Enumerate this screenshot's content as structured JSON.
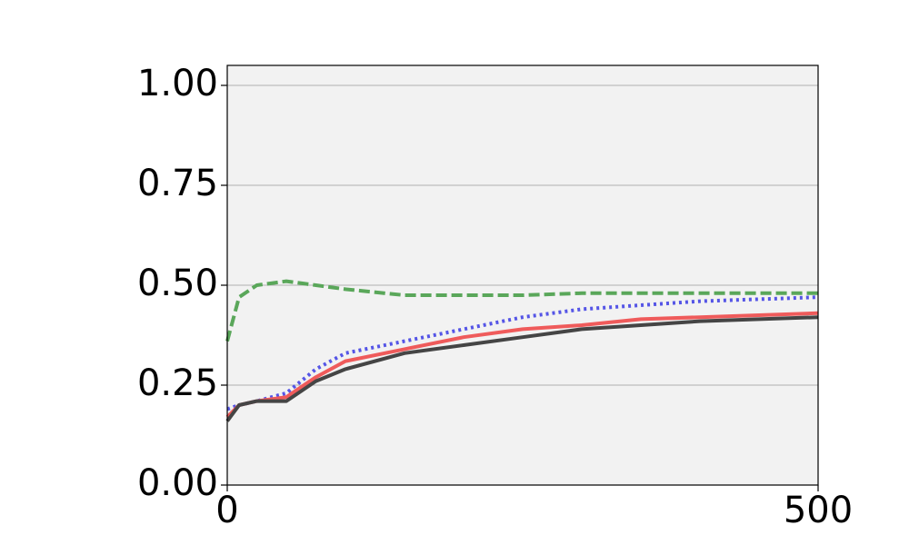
{
  "chart_data": {
    "type": "line",
    "x": [
      0,
      10,
      25,
      50,
      75,
      100,
      150,
      200,
      250,
      300,
      350,
      400,
      450,
      500
    ],
    "series": [
      {
        "color": "#5aa75a",
        "linestyle": "dashed",
        "values": [
          0.36,
          0.47,
          0.5,
          0.51,
          0.5,
          0.49,
          0.475,
          0.475,
          0.475,
          0.48,
          0.48,
          0.48,
          0.48,
          0.48
        ]
      },
      {
        "color": "#5555e6",
        "linestyle": "dotted",
        "values": [
          0.19,
          0.2,
          0.21,
          0.23,
          0.29,
          0.33,
          0.36,
          0.39,
          0.42,
          0.44,
          0.45,
          0.46,
          0.465,
          0.47
        ]
      },
      {
        "color": "#ef5b5b",
        "linestyle": "solid",
        "values": [
          0.17,
          0.2,
          0.21,
          0.22,
          0.27,
          0.31,
          0.34,
          0.37,
          0.39,
          0.4,
          0.415,
          0.42,
          0.425,
          0.43
        ]
      },
      {
        "color": "#454545",
        "linestyle": "solid",
        "values": [
          0.16,
          0.2,
          0.21,
          0.21,
          0.26,
          0.29,
          0.33,
          0.35,
          0.37,
          0.39,
          0.4,
          0.41,
          0.415,
          0.42
        ]
      }
    ],
    "xlim": [
      0,
      500
    ],
    "xticks": [
      0,
      500
    ],
    "ylim": [
      0,
      1.05
    ],
    "yticks": [
      {
        "value": 0,
        "label": "0.00"
      },
      {
        "value": 0.25,
        "label": "0.25"
      },
      {
        "value": 0.5,
        "label": "0.50"
      },
      {
        "value": 0.75,
        "label": "0.75"
      },
      {
        "value": 1,
        "label": "1.00"
      }
    ],
    "grid": true,
    "background": "#f2f2f2"
  }
}
